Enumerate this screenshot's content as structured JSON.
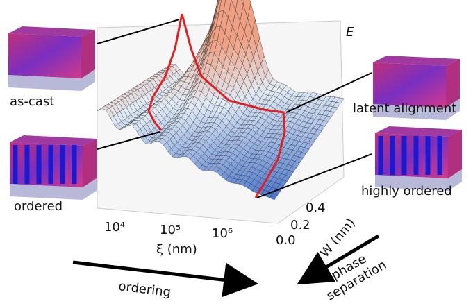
{
  "axes": {
    "z_label": "E",
    "x_label": "ξ (nm)",
    "y_label": "W (nm)",
    "x_ticks": [
      "10⁴",
      "10⁵",
      "10⁶"
    ],
    "y_ticks": [
      "0.0",
      "0.2",
      "0.4"
    ]
  },
  "insets": [
    {
      "label": "as-cast"
    },
    {
      "label": "ordered"
    },
    {
      "label": "latent alignment"
    },
    {
      "label": "highly ordered"
    }
  ],
  "arrows": [
    {
      "label": "ordering"
    },
    {
      "label": "phase separation"
    }
  ]
}
